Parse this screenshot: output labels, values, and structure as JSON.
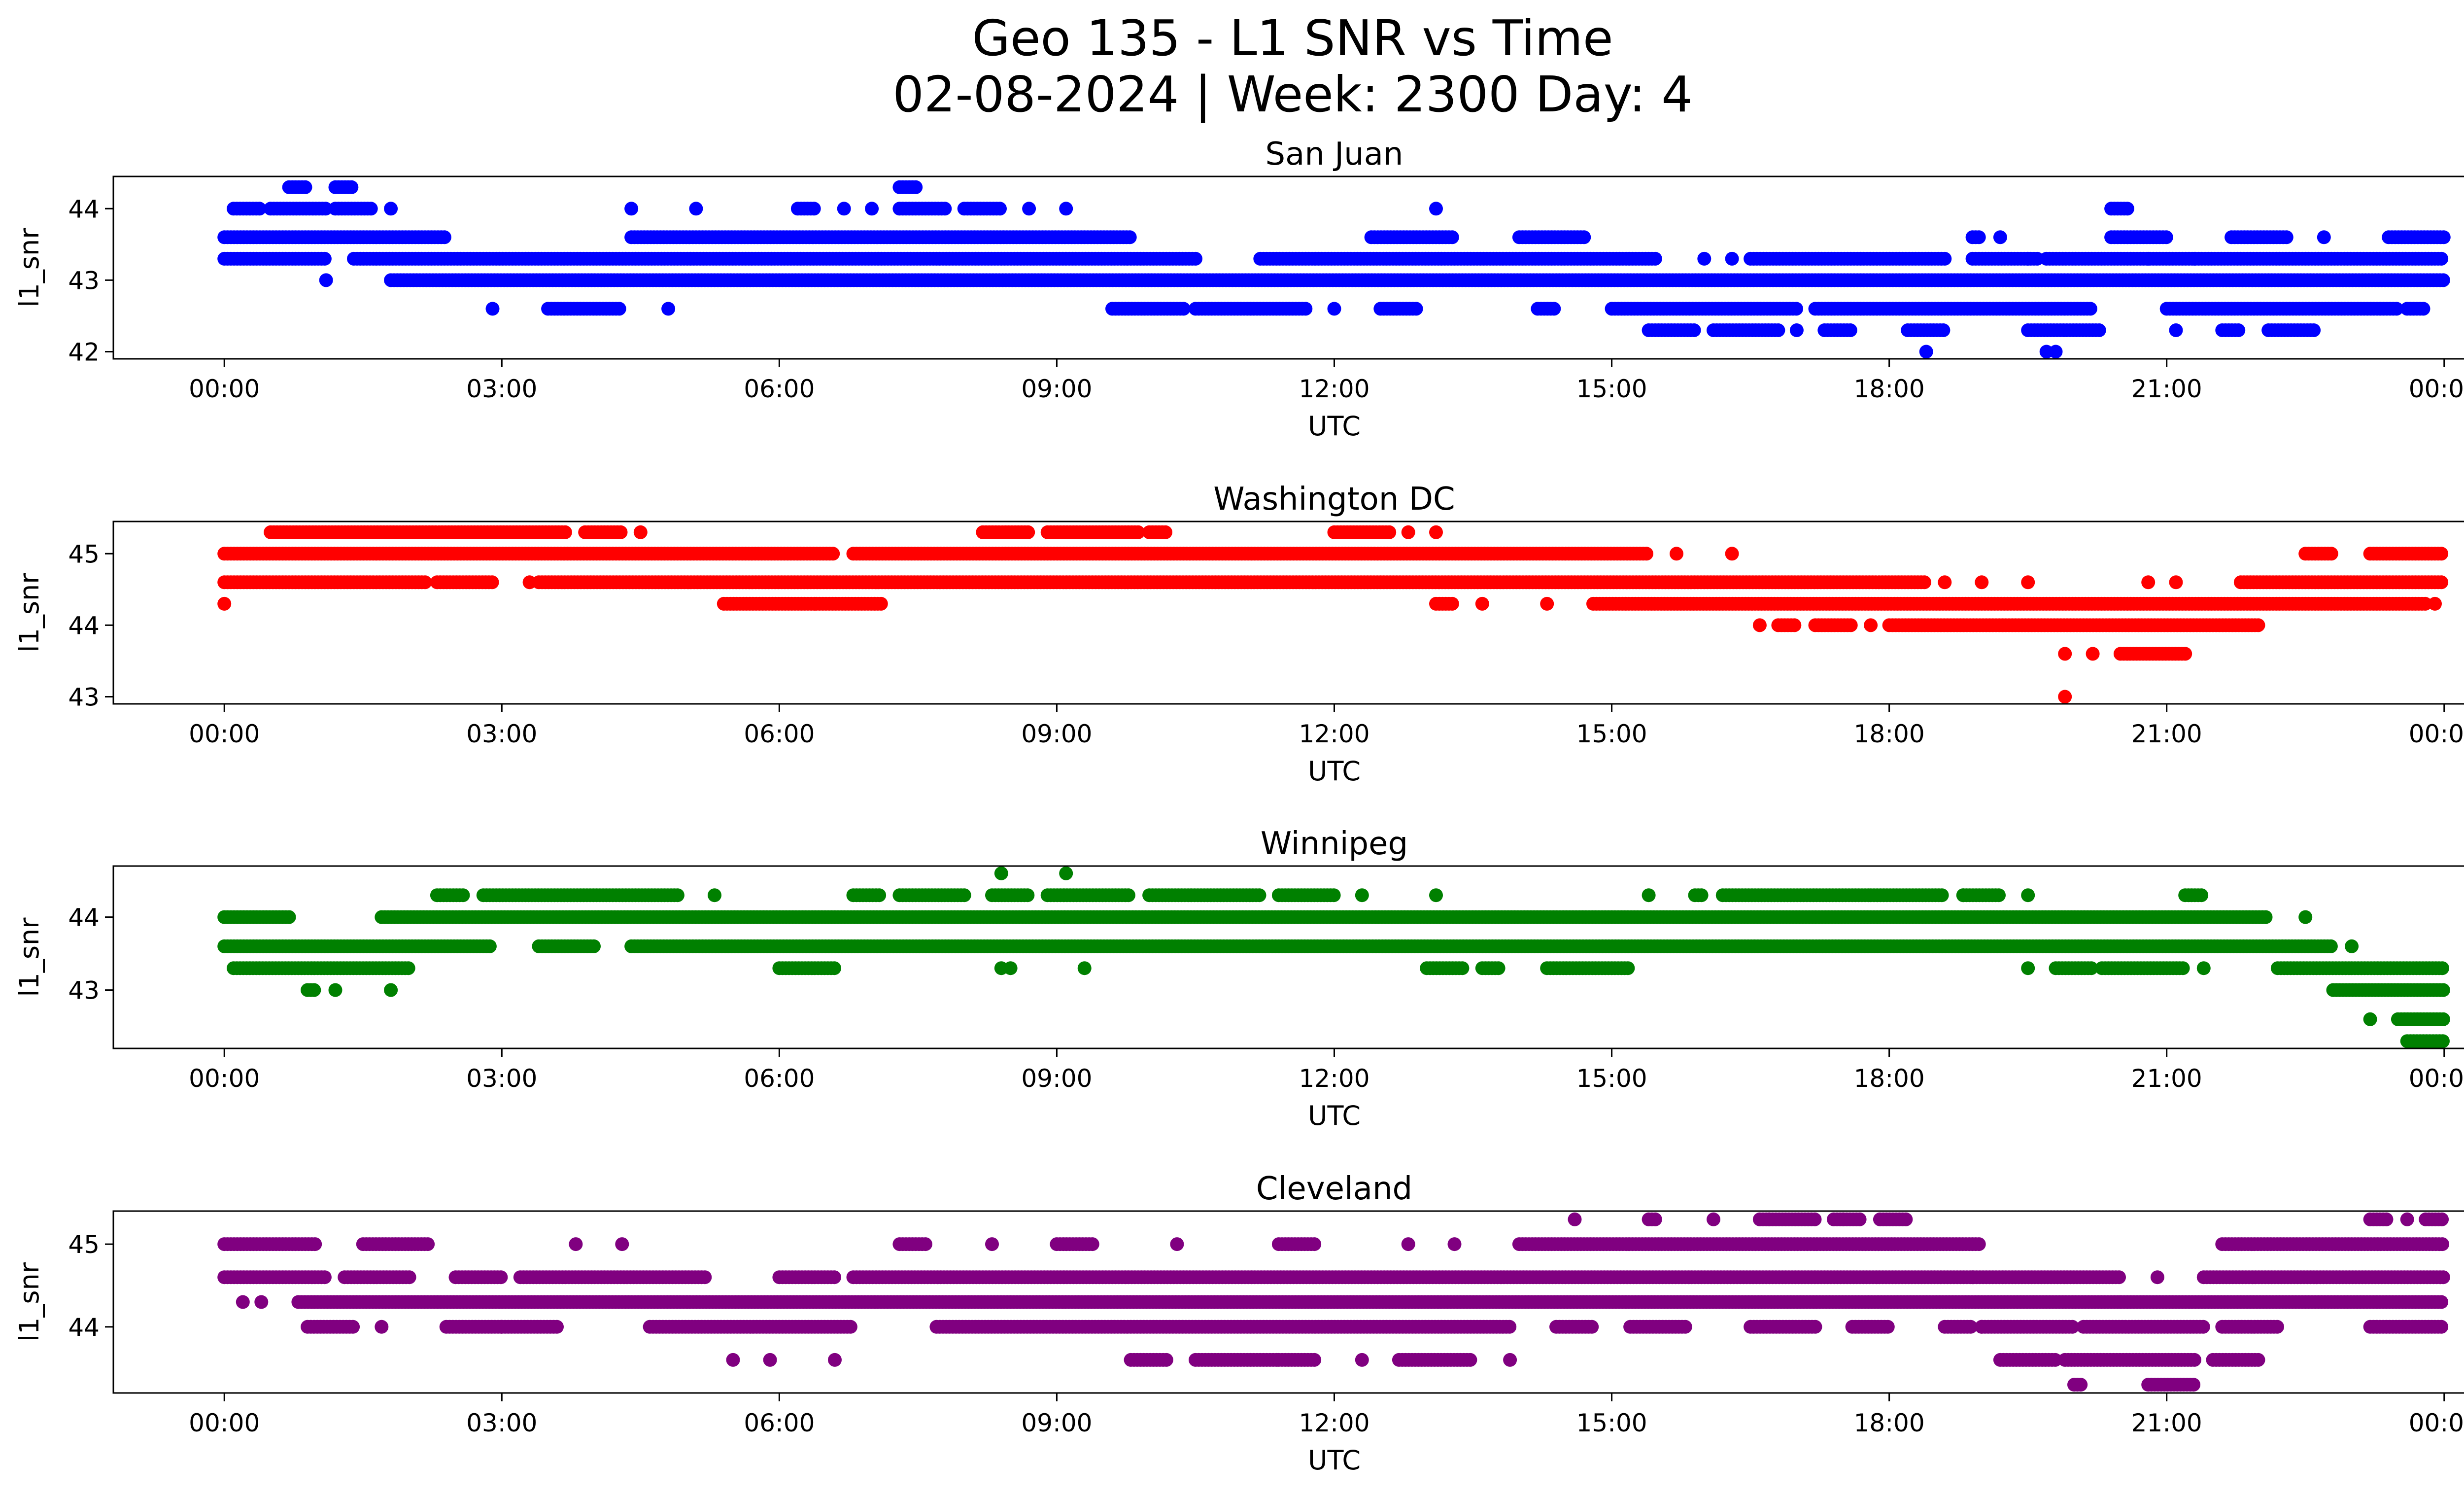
{
  "figure": {
    "title_line1": "Geo 135 - L1 SNR vs Time",
    "title_line2": "02-08-2024 | Week: 2300 Day: 4"
  },
  "chart_data": [
    {
      "type": "scatter",
      "title": "San Juan",
      "xlabel": "UTC",
      "ylabel": "l1_snr",
      "color": "#0000ff",
      "x_unit": "hours UTC",
      "x_ticks": [
        "00:00",
        "03:00",
        "06:00",
        "09:00",
        "12:00",
        "15:00",
        "18:00",
        "21:00",
        "00:00"
      ],
      "y_ticks": [
        42,
        43,
        44
      ],
      "ylim": [
        41.9,
        44.45
      ],
      "xlim": [
        -1.2,
        25.2
      ],
      "bands": [
        {
          "y": 43.0,
          "segments": [
            [
              1.8,
              24.0
            ]
          ]
        },
        {
          "y": 43.3,
          "segments": [
            [
              0.0,
              1.1
            ],
            [
              1.4,
              10.5
            ],
            [
              11.2,
              15.5
            ],
            [
              16.5,
              18.6
            ],
            [
              18.9,
              19.6
            ],
            [
              19.7,
              24.0
            ]
          ]
        },
        {
          "y": 43.6,
          "segments": [
            [
              0.0,
              2.4
            ],
            [
              4.4,
              9.8
            ],
            [
              12.4,
              13.3
            ],
            [
              14.0,
              14.7
            ],
            [
              18.9,
              19.0
            ],
            [
              20.4,
              21.0
            ],
            [
              21.7,
              22.3
            ],
            [
              23.4,
              24.0
            ]
          ]
        },
        {
          "y": 42.6,
          "segments": [
            [
              3.5,
              4.3
            ],
            [
              9.6,
              10.4
            ],
            [
              10.5,
              11.7
            ],
            [
              12.5,
              12.9
            ],
            [
              14.2,
              14.4
            ],
            [
              15.0,
              17.0
            ],
            [
              17.2,
              20.2
            ],
            [
              21.0,
              23.5
            ],
            [
              23.6,
              23.8
            ]
          ]
        },
        {
          "y": 44.0,
          "segments": [
            [
              0.1,
              0.4
            ],
            [
              0.5,
              1.1
            ],
            [
              1.2,
              1.6
            ],
            [
              6.2,
              6.4
            ],
            [
              7.3,
              7.8
            ],
            [
              8.0,
              8.4
            ],
            [
              20.4,
              20.6
            ]
          ]
        },
        {
          "y": 42.3,
          "segments": [
            [
              15.4,
              15.9
            ],
            [
              16.1,
              16.8
            ],
            [
              17.3,
              17.6
            ],
            [
              18.2,
              18.6
            ],
            [
              19.5,
              20.3
            ],
            [
              21.6,
              21.8
            ],
            [
              22.1,
              22.6
            ]
          ]
        },
        {
          "y": 44.3,
          "segments": [
            [
              0.7,
              0.9
            ],
            [
              1.2,
              1.4
            ],
            [
              7.3,
              7.5
            ]
          ]
        }
      ],
      "points": [
        {
          "x": 2.9,
          "y": 42.6
        },
        {
          "x": 4.8,
          "y": 42.6
        },
        {
          "x": 4.4,
          "y": 44.0
        },
        {
          "x": 5.1,
          "y": 44.0
        },
        {
          "x": 6.7,
          "y": 44.0
        },
        {
          "x": 7.0,
          "y": 44.0
        },
        {
          "x": 8.7,
          "y": 44.0
        },
        {
          "x": 9.1,
          "y": 44.0
        },
        {
          "x": 13.1,
          "y": 44.0
        },
        {
          "x": 1.8,
          "y": 44.0
        },
        {
          "x": 1.1,
          "y": 43.0
        },
        {
          "x": 19.2,
          "y": 43.6
        },
        {
          "x": 16.0,
          "y": 43.3
        },
        {
          "x": 16.3,
          "y": 43.3
        },
        {
          "x": 21.3,
          "y": 43.3
        },
        {
          "x": 20.8,
          "y": 43.3
        },
        {
          "x": 18.4,
          "y": 42.0
        },
        {
          "x": 19.7,
          "y": 42.0
        },
        {
          "x": 19.8,
          "y": 42.0
        },
        {
          "x": 17.0,
          "y": 42.3
        },
        {
          "x": 21.1,
          "y": 42.3
        },
        {
          "x": 19.5,
          "y": 43.3
        },
        {
          "x": 12.0,
          "y": 42.6
        },
        {
          "x": 22.7,
          "y": 43.6
        }
      ]
    },
    {
      "type": "scatter",
      "title": "Washington DC",
      "xlabel": "UTC",
      "ylabel": "l1_snr",
      "color": "#ff0000",
      "x_unit": "hours UTC",
      "x_ticks": [
        "00:00",
        "03:00",
        "06:00",
        "09:00",
        "12:00",
        "15:00",
        "18:00",
        "21:00",
        "00:00"
      ],
      "y_ticks": [
        43,
        44,
        45
      ],
      "ylim": [
        42.9,
        45.45
      ],
      "xlim": [
        -1.2,
        25.2
      ],
      "bands": [
        {
          "y": 45.0,
          "segments": [
            [
              0.0,
              6.6
            ],
            [
              6.8,
              15.4
            ],
            [
              22.5,
              22.8
            ],
            [
              23.2,
              24.0
            ]
          ]
        },
        {
          "y": 44.6,
          "segments": [
            [
              0.0,
              2.2
            ],
            [
              2.3,
              2.9
            ],
            [
              3.4,
              18.4
            ],
            [
              21.8,
              24.0
            ]
          ]
        },
        {
          "y": 44.3,
          "segments": [
            [
              5.4,
              6.4
            ],
            [
              6.4,
              7.1
            ],
            [
              13.1,
              13.3
            ],
            [
              14.8,
              23.8
            ]
          ]
        },
        {
          "y": 45.3,
          "segments": [
            [
              0.5,
              3.7
            ],
            [
              3.9,
              4.3
            ],
            [
              8.2,
              8.7
            ],
            [
              8.9,
              9.9
            ],
            [
              10.0,
              10.2
            ],
            [
              12.0,
              12.6
            ]
          ]
        },
        {
          "y": 44.0,
          "segments": [
            [
              16.8,
              17.0
            ],
            [
              17.2,
              17.6
            ],
            [
              18.0,
              22.0
            ]
          ]
        },
        {
          "y": 43.6,
          "segments": [
            [
              20.5,
              21.2
            ]
          ]
        }
      ],
      "points": [
        {
          "x": 0.0,
          "y": 44.3
        },
        {
          "x": 3.3,
          "y": 44.6
        },
        {
          "x": 4.5,
          "y": 45.3
        },
        {
          "x": 13.1,
          "y": 45.3
        },
        {
          "x": 12.8,
          "y": 45.3
        },
        {
          "x": 15.7,
          "y": 45.0
        },
        {
          "x": 16.3,
          "y": 45.0
        },
        {
          "x": 14.3,
          "y": 44.3
        },
        {
          "x": 13.6,
          "y": 44.3
        },
        {
          "x": 16.6,
          "y": 44.0
        },
        {
          "x": 17.8,
          "y": 44.0
        },
        {
          "x": 18.6,
          "y": 44.6
        },
        {
          "x": 19.0,
          "y": 44.6
        },
        {
          "x": 19.5,
          "y": 44.6
        },
        {
          "x": 20.8,
          "y": 44.6
        },
        {
          "x": 21.1,
          "y": 44.6
        },
        {
          "x": 19.9,
          "y": 43.6
        },
        {
          "x": 20.2,
          "y": 43.6
        },
        {
          "x": 19.9,
          "y": 43.0
        },
        {
          "x": 23.9,
          "y": 44.3
        }
      ]
    },
    {
      "type": "scatter",
      "title": "Winnipeg",
      "xlabel": "UTC",
      "ylabel": "l1_snr",
      "color": "#008000",
      "x_unit": "hours UTC",
      "x_ticks": [
        "00:00",
        "03:00",
        "06:00",
        "09:00",
        "12:00",
        "15:00",
        "18:00",
        "21:00",
        "00:00"
      ],
      "y_ticks": [
        43,
        44
      ],
      "ylim": [
        42.2,
        44.7
      ],
      "xlim": [
        -1.2,
        25.2
      ],
      "bands": [
        {
          "y": 44.0,
          "segments": [
            [
              0.0,
              0.7
            ],
            [
              1.7,
              22.1
            ]
          ]
        },
        {
          "y": 43.6,
          "segments": [
            [
              0.0,
              2.9
            ],
            [
              3.4,
              4.0
            ],
            [
              4.4,
              22.8
            ]
          ]
        },
        {
          "y": 43.3,
          "segments": [
            [
              0.1,
              2.0
            ],
            [
              6.0,
              6.6
            ],
            [
              13.0,
              13.4
            ],
            [
              13.6,
              13.8
            ],
            [
              14.3,
              15.2
            ],
            [
              19.8,
              20.2
            ],
            [
              20.3,
              21.2
            ],
            [
              22.2,
              23.0
            ],
            [
              23.0,
              24.0
            ]
          ]
        },
        {
          "y": 44.3,
          "segments": [
            [
              2.3,
              2.6
            ],
            [
              2.8,
              4.9
            ],
            [
              6.8,
              7.1
            ],
            [
              7.3,
              8.0
            ],
            [
              8.3,
              8.7
            ],
            [
              8.9,
              9.8
            ],
            [
              10.0,
              11.2
            ],
            [
              11.4,
              12.0
            ],
            [
              15.9,
              16.0
            ],
            [
              16.2,
              17.8
            ],
            [
              17.8,
              18.6
            ],
            [
              18.8,
              19.2
            ],
            [
              21.2,
              21.4
            ]
          ]
        },
        {
          "y": 43.0,
          "segments": [
            [
              0.9,
              1.0
            ],
            [
              22.8,
              24.0
            ]
          ]
        },
        {
          "y": 42.6,
          "segments": [
            [
              23.5,
              24.0
            ]
          ]
        },
        {
          "y": 42.3,
          "segments": [
            [
              23.6,
              24.0
            ]
          ]
        }
      ],
      "points": [
        {
          "x": 1.2,
          "y": 43.0
        },
        {
          "x": 1.8,
          "y": 43.0
        },
        {
          "x": 5.3,
          "y": 44.3
        },
        {
          "x": 8.4,
          "y": 44.6
        },
        {
          "x": 9.1,
          "y": 44.6
        },
        {
          "x": 9.3,
          "y": 43.3
        },
        {
          "x": 8.4,
          "y": 43.3
        },
        {
          "x": 8.5,
          "y": 43.3
        },
        {
          "x": 12.3,
          "y": 44.3
        },
        {
          "x": 13.1,
          "y": 44.3
        },
        {
          "x": 15.4,
          "y": 44.3
        },
        {
          "x": 18.8,
          "y": 44.3
        },
        {
          "x": 19.5,
          "y": 44.3
        },
        {
          "x": 21.4,
          "y": 43.3
        },
        {
          "x": 19.5,
          "y": 43.3
        },
        {
          "x": 22.5,
          "y": 44.0
        },
        {
          "x": 23.0,
          "y": 43.6
        },
        {
          "x": 23.2,
          "y": 42.6
        }
      ]
    },
    {
      "type": "scatter",
      "title": "Cleveland",
      "xlabel": "UTC",
      "ylabel": "l1_snr",
      "color": "#800080",
      "x_unit": "hours UTC",
      "x_ticks": [
        "00:00",
        "03:00",
        "06:00",
        "09:00",
        "12:00",
        "15:00",
        "18:00",
        "21:00",
        "00:00"
      ],
      "y_ticks": [
        44,
        45
      ],
      "ylim": [
        43.2,
        45.4
      ],
      "xlim": [
        -1.2,
        25.2
      ],
      "bands": [
        {
          "y": 44.6,
          "segments": [
            [
              0.0,
              1.1
            ],
            [
              1.3,
              2.0
            ],
            [
              2.5,
              3.0
            ],
            [
              3.2,
              5.2
            ],
            [
              6.0,
              6.6
            ],
            [
              6.8,
              20.5
            ],
            [
              21.4,
              24.0
            ]
          ]
        },
        {
          "y": 44.3,
          "segments": [
            [
              0.8,
              24.0
            ]
          ]
        },
        {
          "y": 45.0,
          "segments": [
            [
              0.0,
              1.0
            ],
            [
              1.5,
              2.2
            ],
            [
              7.3,
              7.6
            ],
            [
              9.0,
              9.4
            ],
            [
              11.4,
              11.8
            ],
            [
              14.0,
              19.0
            ],
            [
              21.6,
              24.0
            ]
          ]
        },
        {
          "y": 44.0,
          "segments": [
            [
              0.9,
              1.4
            ],
            [
              2.4,
              3.0
            ],
            [
              3.0,
              3.6
            ],
            [
              4.6,
              6.8
            ],
            [
              7.7,
              13.9
            ],
            [
              14.4,
              14.8
            ],
            [
              15.2,
              15.8
            ],
            [
              16.5,
              17.2
            ],
            [
              17.6,
              18.0
            ],
            [
              18.6,
              18.9
            ],
            [
              19.0,
              20.0
            ],
            [
              20.1,
              21.4
            ],
            [
              21.6,
              22.2
            ],
            [
              23.2,
              24.0
            ]
          ]
        },
        {
          "y": 43.6,
          "segments": [
            [
              9.8,
              10.2
            ],
            [
              10.5,
              11.4
            ],
            [
              11.4,
              11.8
            ],
            [
              12.7,
              13.5
            ],
            [
              19.2,
              19.8
            ],
            [
              19.9,
              21.3
            ],
            [
              21.5,
              22.0
            ]
          ]
        },
        {
          "y": 45.3,
          "segments": [
            [
              15.4,
              15.5
            ],
            [
              16.6,
              17.2
            ],
            [
              17.4,
              17.7
            ],
            [
              17.9,
              18.2
            ],
            [
              23.2,
              23.4
            ],
            [
              23.8,
              24.0
            ]
          ]
        },
        {
          "y": 43.3,
          "segments": [
            [
              20.0,
              20.1
            ],
            [
              20.8,
              21.3
            ]
          ]
        }
      ],
      "points": [
        {
          "x": 0.2,
          "y": 44.3
        },
        {
          "x": 0.4,
          "y": 44.3
        },
        {
          "x": 1.7,
          "y": 44.0
        },
        {
          "x": 3.8,
          "y": 45.0
        },
        {
          "x": 4.3,
          "y": 45.0
        },
        {
          "x": 5.5,
          "y": 43.6
        },
        {
          "x": 5.9,
          "y": 43.6
        },
        {
          "x": 6.6,
          "y": 43.6
        },
        {
          "x": 8.3,
          "y": 45.0
        },
        {
          "x": 10.3,
          "y": 45.0
        },
        {
          "x": 12.8,
          "y": 45.0
        },
        {
          "x": 13.3,
          "y": 45.0
        },
        {
          "x": 12.3,
          "y": 43.6
        },
        {
          "x": 13.9,
          "y": 43.6
        },
        {
          "x": 14.6,
          "y": 45.3
        },
        {
          "x": 16.1,
          "y": 45.3
        },
        {
          "x": 17.5,
          "y": 45.3
        },
        {
          "x": 19.0,
          "y": 44.0
        },
        {
          "x": 20.5,
          "y": 44.3
        },
        {
          "x": 20.9,
          "y": 44.6
        },
        {
          "x": 23.6,
          "y": 45.3
        },
        {
          "x": 16.7,
          "y": 45.3
        },
        {
          "x": 18.9,
          "y": 44.6
        }
      ]
    }
  ]
}
